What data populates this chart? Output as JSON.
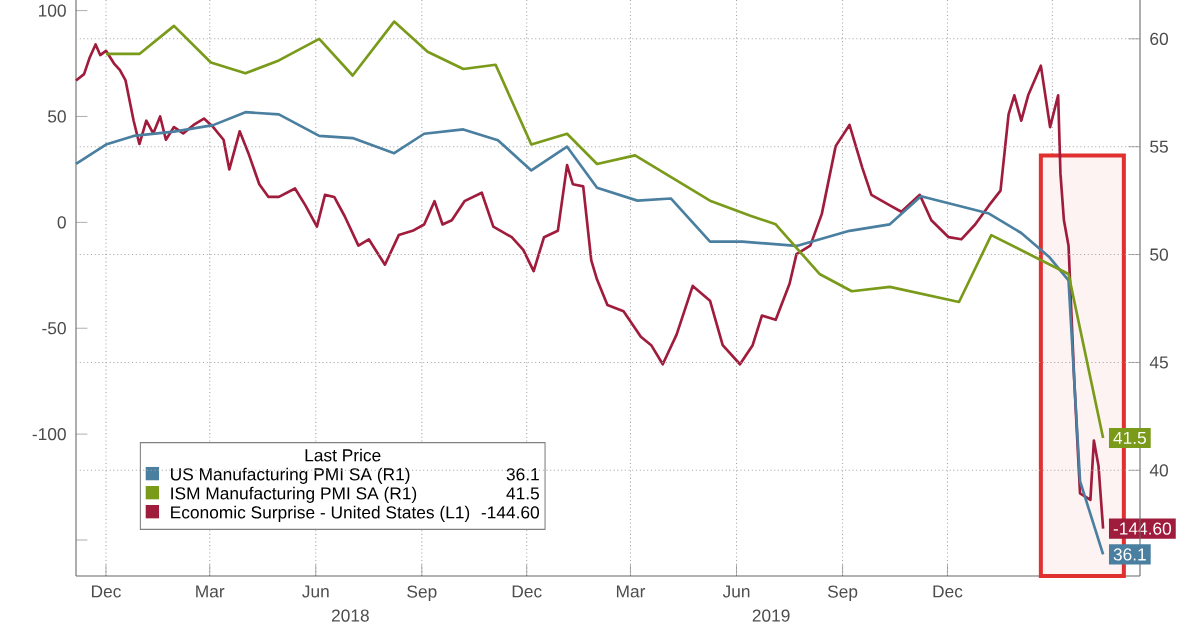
{
  "chart_data": {
    "type": "line",
    "xlim": [
      "2017-11-05",
      "2020-05-16"
    ],
    "xticks": [
      {
        "value": "2017-12-01",
        "label": "Dec"
      },
      {
        "value": "2018-03-01",
        "label": "Mar"
      },
      {
        "value": "2018-06-01",
        "label": "Jun"
      },
      {
        "value": "2018-09-01",
        "label": "Sep"
      },
      {
        "value": "2018-12-01",
        "label": "Dec"
      },
      {
        "value": "2019-03-01",
        "label": "Mar"
      },
      {
        "value": "2019-06-01",
        "label": "Jun"
      },
      {
        "value": "2019-09-01",
        "label": "Sep"
      },
      {
        "value": "2019-12-01",
        "label": "Dec"
      },
      {
        "value": "2020-03-01",
        "label": null
      }
    ],
    "ylim": [
      -167,
      105
    ],
    "yticks": [
      100,
      50,
      0,
      -50,
      -100,
      {
        "value": -150,
        "label": null
      }
    ],
    "y2lim": [
      35.1,
      61.8
    ],
    "y2ticks": [
      40,
      45,
      50,
      55,
      60
    ],
    "grid": true,
    "legend": "bottom left",
    "legend_title": "Last Price",
    "marker": "none",
    "line_style": "solid",
    "annotations": [
      "2018",
      "2019"
    ],
    "bands": [
      {
        "axis": "x",
        "from": "2020-02-20",
        "to": "2020-05-02",
        "color": "#e03030"
      }
    ],
    "series": [
      {
        "name": "US Manufacturing PMI SA  (R1)",
        "color": "#4a7fa0",
        "axis": "y2",
        "x": [
          "2017-11-05",
          "2017-12-01",
          "2017-12-25",
          "2018-01-29",
          "2018-03-04",
          "2018-04-01",
          "2018-04-30",
          "2018-06-04",
          "2018-07-03",
          "2018-08-08",
          "2018-09-03",
          "2018-10-07",
          "2018-11-06",
          "2018-12-05",
          "2019-01-05",
          "2019-01-31",
          "2019-03-07",
          "2019-04-05",
          "2019-05-09",
          "2019-06-06",
          "2019-07-23",
          "2019-09-07",
          "2019-10-12",
          "2019-11-08",
          "2019-12-08",
          "2020-01-06",
          "2020-02-03",
          "2020-02-27",
          "2020-03-15",
          "2020-03-25",
          "2020-04-14"
        ],
        "values": [
          54.2,
          55.1,
          55.5,
          55.7,
          56.0,
          56.6,
          56.5,
          55.5,
          55.4,
          54.7,
          55.6,
          55.8,
          55.3,
          53.9,
          55.0,
          53.1,
          52.5,
          52.6,
          50.6,
          50.6,
          50.4,
          51.1,
          51.4,
          52.7,
          52.3,
          51.9,
          51.0,
          49.9,
          48.8,
          39.5,
          36.1
        ],
        "value_labels": [
          null,
          null,
          null,
          null,
          null,
          null,
          null,
          null,
          null,
          null,
          null,
          null,
          null,
          null,
          null,
          null,
          null,
          null,
          null,
          null,
          null,
          null,
          null,
          null,
          null,
          null,
          null,
          null,
          null,
          null,
          "36.1"
        ]
      },
      {
        "name": "ISM Manufacturing PMI SA  (R1)",
        "color": "#7a9a1a",
        "axis": "y2",
        "x": [
          "2017-12-01",
          "2017-12-30",
          "2018-01-29",
          "2018-03-02",
          "2018-04-01",
          "2018-04-30",
          "2018-06-04",
          "2018-07-03",
          "2018-08-08",
          "2018-09-06",
          "2018-10-07",
          "2018-11-04",
          "2018-12-05",
          "2019-01-05",
          "2019-01-31",
          "2019-03-05",
          "2019-05-09",
          "2019-06-13",
          "2019-07-05",
          "2019-08-12",
          "2019-09-09",
          "2019-10-12",
          "2019-12-11",
          "2020-01-08",
          "2020-03-15",
          "2020-04-14"
        ],
        "values": [
          59.3,
          59.3,
          60.6,
          58.9,
          58.4,
          59.0,
          60.0,
          58.3,
          60.8,
          59.4,
          58.6,
          58.8,
          55.1,
          55.6,
          54.2,
          54.6,
          52.5,
          51.8,
          51.4,
          49.1,
          48.3,
          48.5,
          47.8,
          50.9,
          49.1,
          41.5
        ],
        "value_labels": [
          null,
          null,
          null,
          null,
          null,
          null,
          null,
          null,
          null,
          null,
          null,
          null,
          null,
          null,
          null,
          null,
          null,
          null,
          null,
          null,
          null,
          null,
          null,
          null,
          null,
          "41.5"
        ]
      },
      {
        "name": "Economic Surprise - United States  (L1)",
        "color": "#a01c3c",
        "axis": "y",
        "x": [
          "2017-11-05",
          "2017-11-12",
          "2017-11-17",
          "2017-11-22",
          "2017-11-26",
          "2017-12-01",
          "2017-12-08",
          "2017-12-13",
          "2017-12-18",
          "2017-12-25",
          "2017-12-30",
          "2018-01-05",
          "2018-01-11",
          "2018-01-17",
          "2018-01-22",
          "2018-01-29",
          "2018-02-06",
          "2018-02-15",
          "2018-02-24",
          "2018-03-04",
          "2018-03-13",
          "2018-03-18",
          "2018-03-27",
          "2018-04-04",
          "2018-04-13",
          "2018-04-21",
          "2018-04-30",
          "2018-05-14",
          "2018-05-23",
          "2018-06-02",
          "2018-06-09",
          "2018-06-17",
          "2018-06-26",
          "2018-07-08",
          "2018-07-17",
          "2018-07-31",
          "2018-08-12",
          "2018-08-24",
          "2018-09-03",
          "2018-09-12",
          "2018-09-19",
          "2018-09-27",
          "2018-10-08",
          "2018-10-23",
          "2018-11-02",
          "2018-11-18",
          "2018-11-28",
          "2018-12-07",
          "2018-12-16",
          "2018-12-28",
          "2019-01-05",
          "2019-01-10",
          "2019-01-19",
          "2019-01-26",
          "2019-01-31",
          "2019-02-09",
          "2019-02-23",
          "2019-03-10",
          "2019-03-19",
          "2019-03-29",
          "2019-04-10",
          "2019-04-24",
          "2019-05-09",
          "2019-05-20",
          "2019-06-04",
          "2019-06-15",
          "2019-06-23",
          "2019-07-05",
          "2019-07-17",
          "2019-07-23",
          "2019-08-04",
          "2019-08-14",
          "2019-08-26",
          "2019-09-07",
          "2019-09-18",
          "2019-09-26",
          "2019-10-12",
          "2019-10-22",
          "2019-11-07",
          "2019-11-17",
          "2019-12-02",
          "2019-12-13",
          "2019-12-25",
          "2020-01-06",
          "2020-01-16",
          "2020-01-23",
          "2020-01-28",
          "2020-02-03",
          "2020-02-09",
          "2020-02-20",
          "2020-02-28",
          "2020-03-06",
          "2020-03-08",
          "2020-03-11",
          "2020-03-15",
          "2020-03-20",
          "2020-03-25",
          "2020-04-03",
          "2020-04-06",
          "2020-04-10",
          "2020-04-14"
        ],
        "values": [
          67,
          70,
          78,
          84,
          79,
          81,
          75,
          72,
          67,
          48,
          37,
          48,
          42,
          50,
          39,
          45,
          42,
          46,
          49,
          45,
          39,
          25,
          43,
          32,
          18,
          12,
          12,
          16,
          8,
          -2,
          13,
          12,
          3,
          -11,
          -8,
          -20,
          -6,
          -4,
          -1,
          10,
          -1,
          1,
          10,
          14,
          -2,
          -7,
          -13,
          -23,
          -7,
          -4,
          27,
          18,
          17,
          -18,
          -27,
          -39,
          -42,
          -54,
          -58,
          -67,
          -53,
          -30,
          -37,
          -58,
          -67,
          -58,
          -44,
          -46,
          -29,
          -15,
          -11,
          4,
          36,
          46,
          26,
          13,
          8,
          5,
          13,
          1,
          -7,
          -8,
          -1,
          8,
          15,
          51,
          60,
          48,
          60,
          74,
          45,
          60,
          23,
          1,
          -11,
          -75,
          -128,
          -131,
          -103,
          -115,
          -144.6
        ],
        "value_labels": [
          null,
          null,
          null,
          null,
          null,
          null,
          null,
          null,
          null,
          null,
          null,
          null,
          null,
          null,
          null,
          null,
          null,
          null,
          null,
          null,
          null,
          null,
          null,
          null,
          null,
          null,
          null,
          null,
          null,
          null,
          null,
          null,
          null,
          null,
          null,
          null,
          null,
          null,
          null,
          null,
          null,
          null,
          null,
          null,
          null,
          null,
          null,
          null,
          null,
          null,
          null,
          null,
          null,
          null,
          null,
          null,
          null,
          null,
          null,
          null,
          null,
          null,
          null,
          null,
          null,
          null,
          null,
          null,
          null,
          null,
          null,
          null,
          null,
          null,
          null,
          null,
          null,
          null,
          null,
          null,
          null,
          null,
          null,
          null,
          null,
          null,
          null,
          null,
          null,
          null,
          null,
          null,
          null,
          null,
          null,
          null,
          null,
          null,
          null,
          null,
          "-144.60"
        ]
      }
    ]
  }
}
